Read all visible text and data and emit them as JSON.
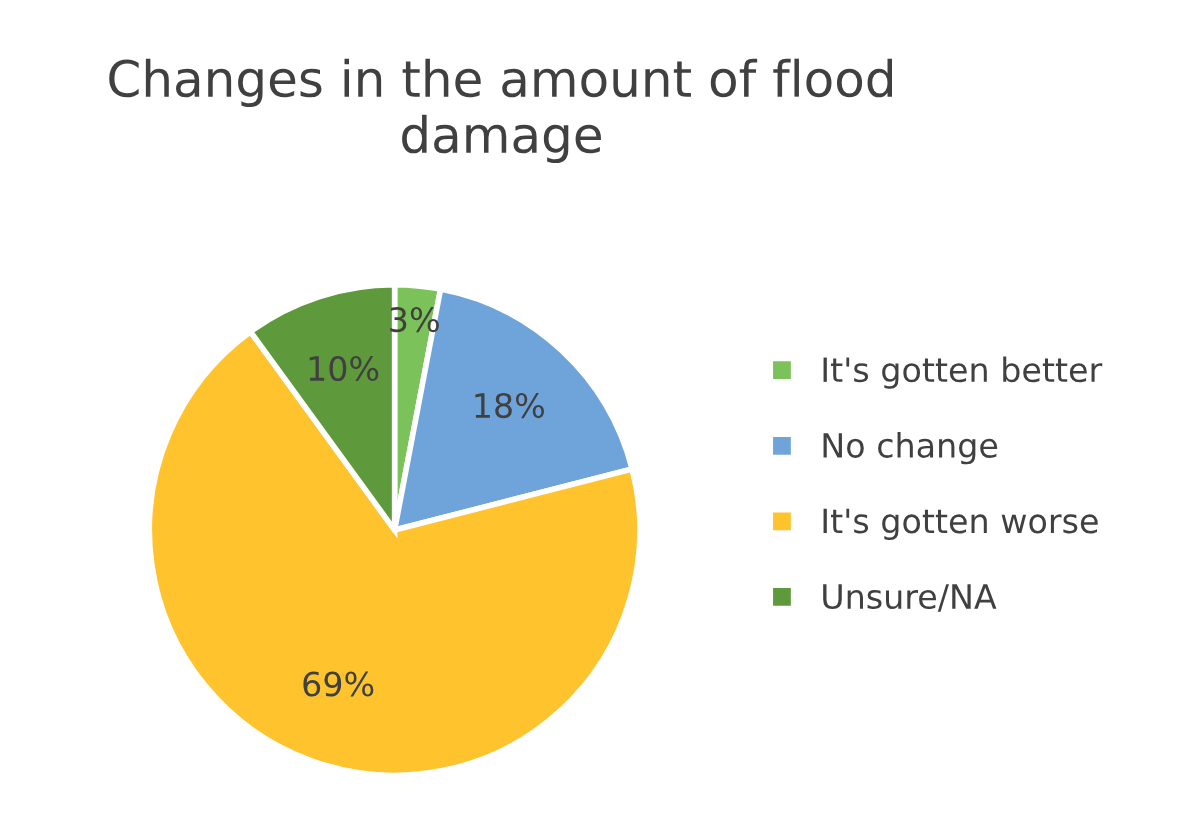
{
  "chart_data": {
    "type": "pie",
    "title": "Changes in the amount of flood damage",
    "categories": [
      "It's gotten better",
      "No change",
      "It's gotten worse",
      "Unsure/NA"
    ],
    "values": [
      3,
      18,
      69,
      10
    ],
    "value_labels": [
      "3%",
      "18%",
      "69%",
      "10%"
    ],
    "colors": [
      "#7cc25a",
      "#6fa4db",
      "#ffc32d",
      "#5e9a3c"
    ],
    "legend": "right"
  }
}
